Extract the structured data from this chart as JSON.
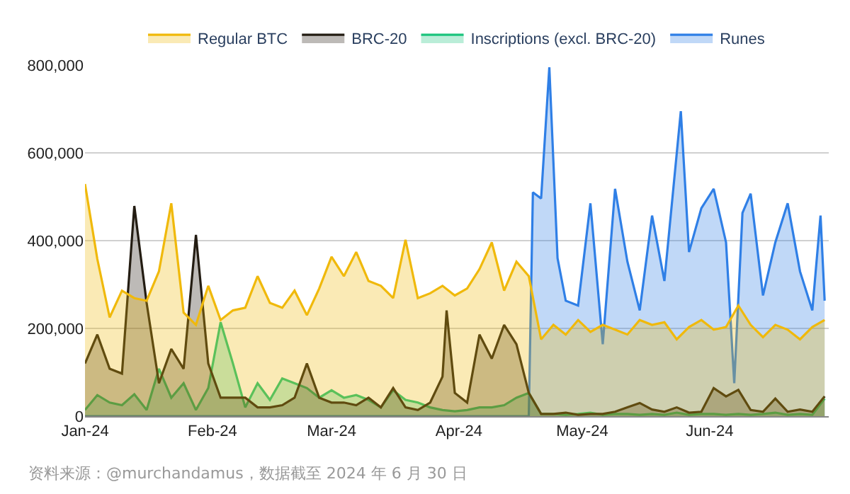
{
  "chart_data": {
    "type": "area",
    "x": [
      "2024-01-01",
      "2024-01-04",
      "2024-01-07",
      "2024-01-10",
      "2024-01-13",
      "2024-01-16",
      "2024-01-19",
      "2024-01-22",
      "2024-01-25",
      "2024-01-28",
      "2024-01-31",
      "2024-02-03",
      "2024-02-06",
      "2024-02-09",
      "2024-02-12",
      "2024-02-15",
      "2024-02-18",
      "2024-02-21",
      "2024-02-24",
      "2024-02-27",
      "2024-03-01",
      "2024-03-04",
      "2024-03-07",
      "2024-03-10",
      "2024-03-13",
      "2024-03-16",
      "2024-03-19",
      "2024-03-22",
      "2024-03-25",
      "2024-03-28",
      "2024-03-31",
      "2024-04-03",
      "2024-04-06",
      "2024-04-09",
      "2024-04-12",
      "2024-04-15",
      "2024-04-18",
      "2024-04-21",
      "2024-04-24",
      "2024-04-27",
      "2024-04-30",
      "2024-05-03",
      "2024-05-06",
      "2024-05-09",
      "2024-05-12",
      "2024-05-15",
      "2024-05-18",
      "2024-05-21",
      "2024-05-24",
      "2024-05-27",
      "2024-05-30",
      "2024-06-02",
      "2024-06-05",
      "2024-06-08",
      "2024-06-11",
      "2024-06-14",
      "2024-06-17",
      "2024-06-20",
      "2024-06-23",
      "2024-06-26",
      "2024-06-29"
    ],
    "series": [
      {
        "name": "Regular BTC",
        "color": "#f0b90b",
        "values": [
          529000,
          358000,
          225000,
          286000,
          269000,
          263000,
          330000,
          485000,
          236000,
          208000,
          297000,
          219000,
          241000,
          247000,
          319000,
          258000,
          247000,
          286000,
          230000,
          291000,
          363000,
          319000,
          374000,
          308000,
          297000,
          269000,
          402000,
          269000,
          280000,
          297000,
          275000,
          291000,
          335000,
          396000,
          286000,
          352000,
          319000,
          175000,
          208000,
          186000,
          219000,
          192000,
          208000,
          197000,
          186000,
          219000,
          208000,
          214000,
          175000,
          203000,
          219000,
          197000,
          203000,
          252000,
          208000,
          180000,
          208000,
          197000,
          175000,
          203000,
          219000
        ]
      },
      {
        "name": "BRC-20",
        "color": "#231c12",
        "x": [
          "2024-01-01",
          "2024-01-04",
          "2024-01-07",
          "2024-01-10",
          "2024-01-13",
          "2024-01-16",
          "2024-01-19",
          "2024-01-22",
          "2024-01-25",
          "2024-01-28",
          "2024-01-31",
          "2024-02-03",
          "2024-02-06",
          "2024-02-09",
          "2024-02-12",
          "2024-02-15",
          "2024-02-18",
          "2024-02-21",
          "2024-02-24",
          "2024-02-27",
          "2024-03-01",
          "2024-03-04",
          "2024-03-07",
          "2024-03-10",
          "2024-03-13",
          "2024-03-16",
          "2024-03-19",
          "2024-03-22",
          "2024-03-25",
          "2024-03-28",
          "2024-03-29",
          "2024-03-31",
          "2024-04-03",
          "2024-04-06",
          "2024-04-09",
          "2024-04-12",
          "2024-04-15",
          "2024-04-18",
          "2024-04-21",
          "2024-04-24",
          "2024-04-27",
          "2024-04-30",
          "2024-05-03",
          "2024-05-06",
          "2024-05-09",
          "2024-05-12",
          "2024-05-15",
          "2024-05-18",
          "2024-05-21",
          "2024-05-24",
          "2024-05-27",
          "2024-05-30",
          "2024-06-02",
          "2024-06-05",
          "2024-06-08",
          "2024-06-11",
          "2024-06-14",
          "2024-06-17",
          "2024-06-20",
          "2024-06-23",
          "2024-06-26",
          "2024-06-29"
        ],
        "values": [
          120000,
          186000,
          108000,
          97000,
          479000,
          258000,
          75000,
          153000,
          108000,
          413000,
          120000,
          42000,
          42000,
          42000,
          20000,
          20000,
          25000,
          42000,
          120000,
          42000,
          31000,
          31000,
          25000,
          42000,
          20000,
          64000,
          20000,
          14000,
          31000,
          90000,
          241000,
          53000,
          31000,
          186000,
          131000,
          208000,
          164000,
          53000,
          5000,
          5000,
          8000,
          3000,
          5000,
          5000,
          10000,
          20000,
          30000,
          15000,
          10000,
          20000,
          8000,
          10000,
          64000,
          45000,
          60000,
          14000,
          10000,
          40000,
          10000,
          15000,
          10000,
          45000
        ]
      },
      {
        "name": "Inscriptions (excl. BRC-20)",
        "color": "#1bc47d",
        "values": [
          14000,
          48000,
          31000,
          25000,
          50000,
          14000,
          108000,
          42000,
          75000,
          14000,
          64000,
          214000,
          120000,
          20000,
          75000,
          37000,
          86000,
          75000,
          64000,
          42000,
          59000,
          42000,
          48000,
          37000,
          20000,
          59000,
          37000,
          31000,
          20000,
          14000,
          11000,
          14000,
          20000,
          20000,
          25000,
          42000,
          53000,
          5000,
          5000,
          3000,
          5000,
          8000,
          3000,
          5000,
          5000,
          3000,
          5000,
          3000,
          8000,
          3000,
          5000,
          5000,
          3000,
          5000,
          3000,
          5000,
          8000,
          3000,
          5000,
          3000,
          40000
        ]
      },
      {
        "name": "Runes",
        "color": "#2f7fe6",
        "x": [
          "2024-01-01",
          "2024-04-18",
          "2024-04-19",
          "2024-04-21",
          "2024-04-23",
          "2024-04-25",
          "2024-04-27",
          "2024-04-30",
          "2024-05-03",
          "2024-05-06",
          "2024-05-09",
          "2024-05-12",
          "2024-05-15",
          "2024-05-18",
          "2024-05-21",
          "2024-05-25",
          "2024-05-27",
          "2024-05-30",
          "2024-06-02",
          "2024-06-05",
          "2024-06-07",
          "2024-06-09",
          "2024-06-11",
          "2024-06-14",
          "2024-06-17",
          "2024-06-20",
          "2024-06-23",
          "2024-06-26",
          "2024-06-28",
          "2024-06-29"
        ],
        "values": [
          0,
          0,
          510000,
          496000,
          795000,
          360000,
          263000,
          252000,
          485000,
          164000,
          518000,
          352000,
          241000,
          457000,
          308000,
          695000,
          374000,
          474000,
          518000,
          396000,
          75000,
          463000,
          507000,
          275000,
          396000,
          485000,
          330000,
          241000,
          457000,
          263000
        ]
      }
    ],
    "xlim": [
      "2024-01-01",
      "2024-06-30"
    ],
    "xticks": [
      {
        "value": "2024-01-01",
        "label": "Jan-24"
      },
      {
        "value": "2024-02-01",
        "label": "Feb-24"
      },
      {
        "value": "2024-03-01",
        "label": "Mar-24"
      },
      {
        "value": "2024-04-01",
        "label": "Apr-24"
      },
      {
        "value": "2024-05-01",
        "label": "May-24"
      },
      {
        "value": "2024-06-01",
        "label": "Jun-24"
      }
    ],
    "ylim": [
      0,
      800000
    ],
    "yticks": [
      0,
      {
        "value": 200000,
        "label": "200,000"
      },
      {
        "value": 400000,
        "label": "400,000"
      },
      {
        "value": 600000,
        "label": "600,000"
      },
      {
        "value": 800000,
        "label": "800,000"
      }
    ],
    "grid": "y",
    "legend": "top",
    "annotations": [
      "资料来源：@murchandamus，数据截至 2024 年 6 月 30 日"
    ]
  }
}
